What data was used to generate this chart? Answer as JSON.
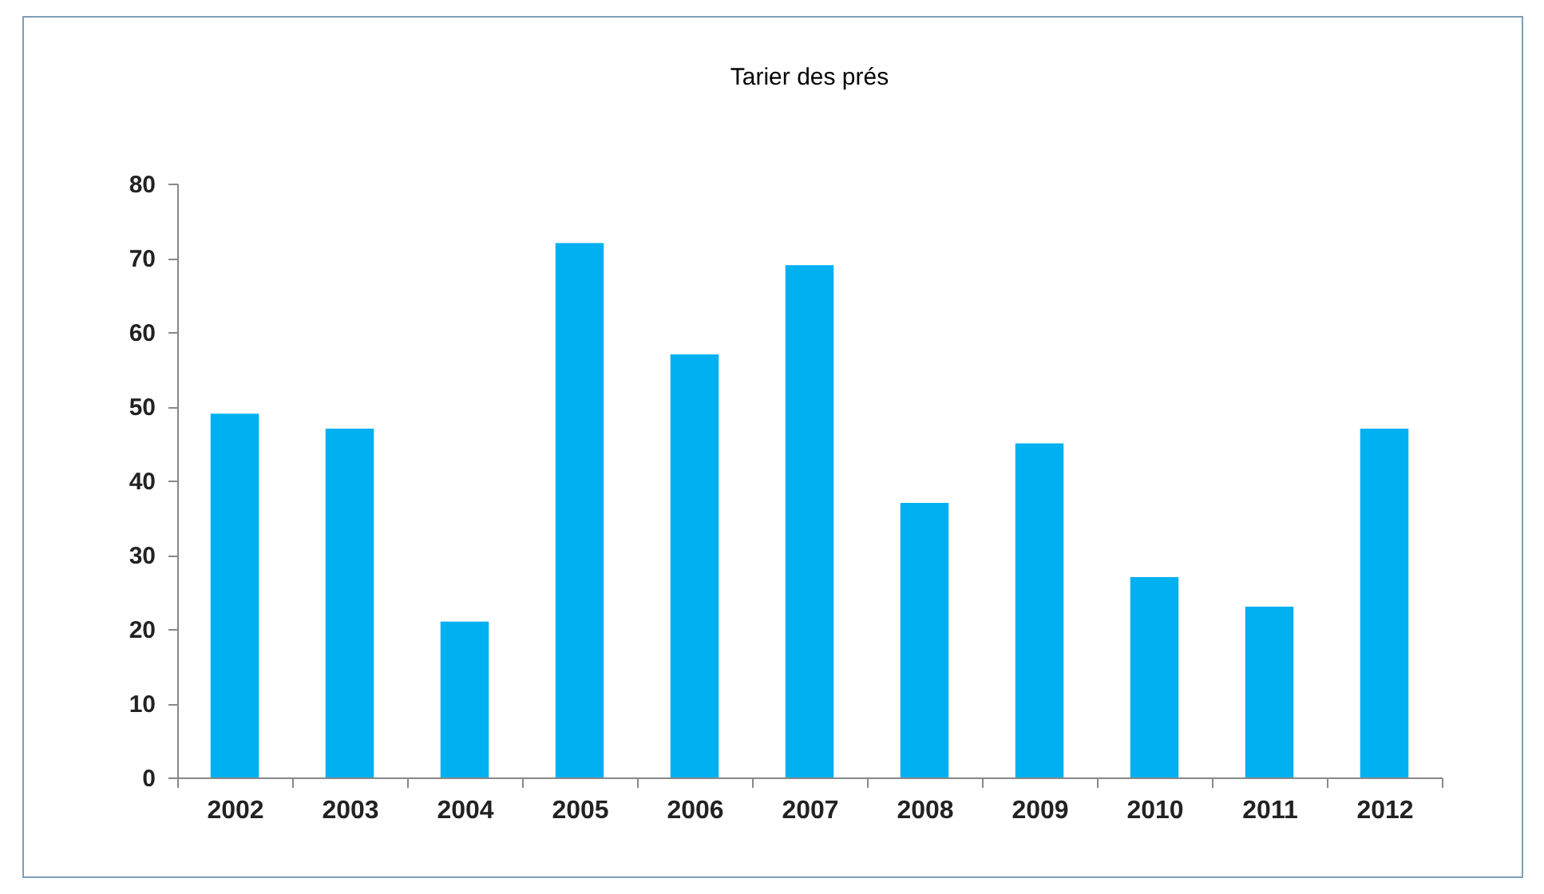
{
  "chart_data": {
    "type": "bar",
    "title": "Tarier des prés",
    "categories": [
      "2002",
      "2003",
      "2004",
      "2005",
      "2006",
      "2007",
      "2008",
      "2009",
      "2010",
      "2011",
      "2012"
    ],
    "values": [
      49,
      47,
      21,
      72,
      57,
      69,
      37,
      45,
      27,
      23,
      47
    ],
    "color": "#00b0f0",
    "ylim": [
      0,
      80
    ],
    "yticks": [
      0,
      10,
      20,
      30,
      40,
      50,
      60,
      70,
      80
    ],
    "grid": false
  }
}
